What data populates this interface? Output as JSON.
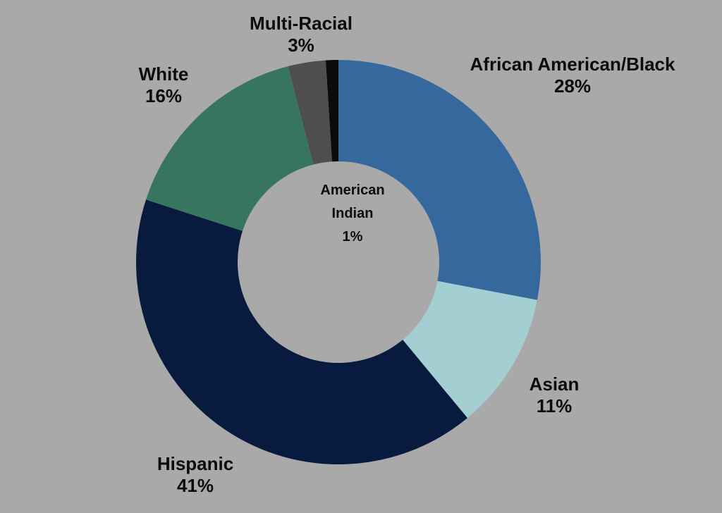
{
  "chart_data": {
    "type": "pie",
    "subtype": "donut",
    "title": "",
    "categories": [
      "African American/Black",
      "Asian",
      "Hispanic",
      "White",
      "Multi-Racial",
      "American Indian"
    ],
    "values": [
      28,
      11,
      41,
      16,
      3,
      1
    ],
    "unit": "%",
    "colors": [
      "#35699d",
      "#a3ced2",
      "#081b3e",
      "#38755f",
      "#4e4e4e",
      "#0b0b0b"
    ],
    "background_color": "#a9a9a9",
    "start_angle_deg": 0,
    "direction": "clockwise",
    "inner_radius_ratio": 0.5,
    "legend_position": "none",
    "label_style": "outside-with-percent",
    "labels": [
      {
        "id": "african-american-black",
        "name": "African American/Black",
        "pct": "28%"
      },
      {
        "id": "asian",
        "name": "Asian",
        "pct": "11%"
      },
      {
        "id": "hispanic",
        "name": "Hispanic",
        "pct": "41%"
      },
      {
        "id": "white",
        "name": "White",
        "pct": "16%"
      },
      {
        "id": "multi-racial",
        "name": "Multi-Racial",
        "pct": "3%"
      },
      {
        "id": "american-indian",
        "name": "American Indian",
        "pct": "1%",
        "lines": [
          "American",
          "Indian"
        ]
      }
    ]
  }
}
